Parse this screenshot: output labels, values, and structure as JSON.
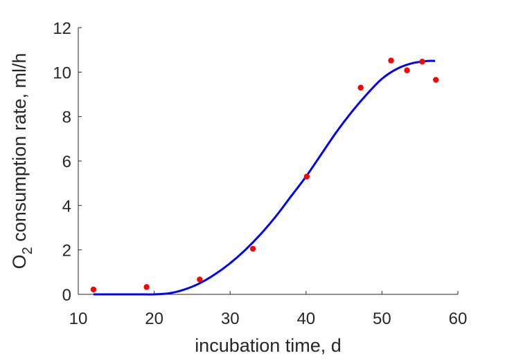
{
  "chart_data": {
    "type": "scatter",
    "xlabel": "incubation time, d",
    "ylabel": {
      "prefix": "O",
      "subscript": "2",
      "rest": " consumption rate, ml/h"
    },
    "xlim": [
      10,
      60
    ],
    "ylim": [
      0,
      12
    ],
    "xticks": [
      10,
      20,
      30,
      40,
      50,
      60
    ],
    "yticks": [
      0,
      2,
      4,
      6,
      8,
      10,
      12
    ],
    "grid": false,
    "legend": "none",
    "series": [
      {
        "kind": "points",
        "color": "#ff0000",
        "x": [
          12,
          19,
          26,
          33,
          40.1,
          47.2,
          51.2,
          53.3,
          55.3,
          57.1
        ],
        "y": [
          0.22,
          0.33,
          0.67,
          2.05,
          5.3,
          9.3,
          10.52,
          10.08,
          10.47,
          9.65
        ]
      },
      {
        "kind": "line",
        "color": "#0000ff",
        "x": [
          12,
          14,
          16,
          18,
          20,
          22,
          24,
          26,
          28,
          30,
          32,
          34,
          36,
          38,
          40,
          42,
          44,
          46,
          48,
          50,
          52,
          54,
          56,
          57
        ],
        "y": [
          0,
          0,
          0,
          0,
          0,
          0.05,
          0.22,
          0.5,
          0.9,
          1.4,
          2.0,
          2.7,
          3.5,
          4.4,
          5.3,
          6.3,
          7.3,
          8.2,
          9.0,
          9.7,
          10.15,
          10.4,
          10.5,
          10.5
        ]
      }
    ]
  }
}
